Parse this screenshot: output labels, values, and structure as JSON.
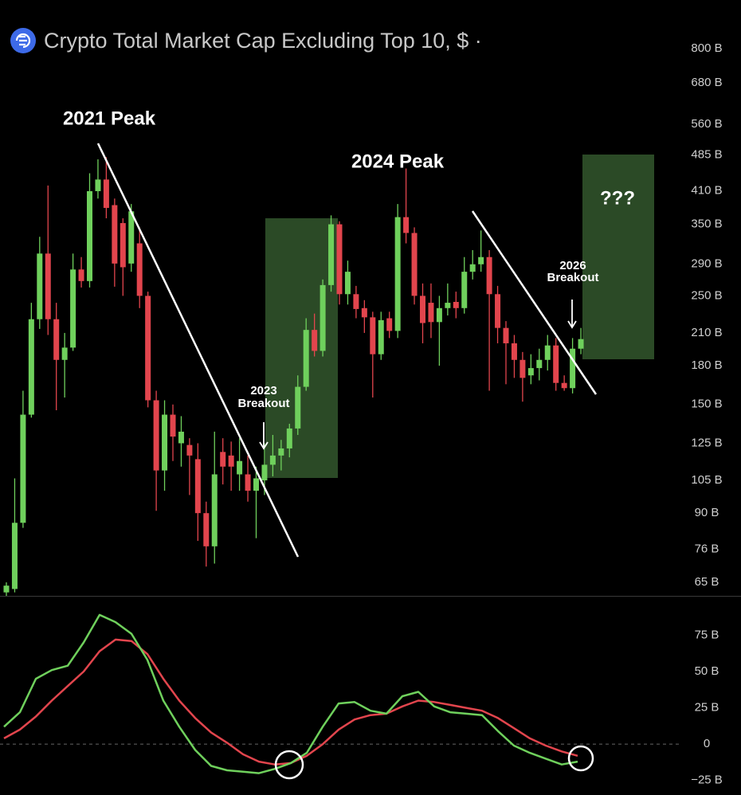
{
  "chart_data": [
    {
      "type": "candlestick",
      "title": "Crypto Total Market Cap Excluding Top 10, $ ·",
      "log": true,
      "ylim": [
        61,
        898
      ],
      "yticks": [
        {
          "value": 800,
          "label": "800 B"
        },
        {
          "value": 680,
          "label": "680 B"
        },
        {
          "value": 560,
          "label": "560 B"
        },
        {
          "value": 485,
          "label": "485 B"
        },
        {
          "value": 410,
          "label": "410 B"
        },
        {
          "value": 350,
          "label": "350 B"
        },
        {
          "value": 290,
          "label": "290 B"
        },
        {
          "value": 250,
          "label": "250 B"
        },
        {
          "value": 210,
          "label": "210 B"
        },
        {
          "value": 180,
          "label": "180 B"
        },
        {
          "value": 150,
          "label": "150 B"
        },
        {
          "value": 125,
          "label": "125 B"
        },
        {
          "value": 105,
          "label": "105 B"
        },
        {
          "value": 90,
          "label": "90 B"
        },
        {
          "value": 76,
          "label": "76 B"
        },
        {
          "value": 65,
          "label": "65 B"
        }
      ],
      "up_color": "#6fd05c",
      "down_color": "#e2454d",
      "open": [
        62,
        63,
        86,
        143,
        224,
        305,
        224,
        185,
        196,
        283,
        268,
        409,
        432,
        383,
        352,
        291,
        320,
        250,
        153,
        110,
        143,
        125,
        124,
        116,
        90,
        77,
        120,
        118,
        108,
        108,
        100,
        105,
        113,
        118,
        122,
        134,
        163,
        213,
        193,
        263,
        350,
        252,
        252,
        236,
        226,
        190,
        225,
        212,
        362,
        336,
        250,
        242,
        221,
        236,
        243,
        236,
        280,
        290,
        300,
        252,
        215,
        200,
        185,
        172,
        178,
        185,
        198,
        166,
        162,
        195
      ],
      "high": [
        65,
        106,
        160,
        242,
        330,
        420,
        242,
        210,
        305,
        300,
        445,
        475,
        480,
        395,
        360,
        385,
        345,
        255,
        160,
        153,
        150,
        142,
        128,
        125,
        95,
        132,
        128,
        126,
        128,
        118,
        112,
        125,
        130,
        127,
        137,
        172,
        225,
        230,
        270,
        365,
        355,
        295,
        262,
        245,
        232,
        232,
        232,
        385,
        455,
        345,
        265,
        265,
        250,
        265,
        255,
        300,
        310,
        340,
        310,
        262,
        222,
        208,
        192,
        190,
        195,
        208,
        205,
        172,
        205,
        215
      ],
      "low": [
        61,
        62,
        84,
        141,
        214,
        208,
        146,
        155,
        193,
        260,
        260,
        395,
        360,
        261,
        250,
        280,
        236,
        148,
        91,
        100,
        115,
        112,
        98,
        79,
        70,
        71,
        103,
        100,
        100,
        95,
        80,
        98,
        107,
        110,
        117,
        130,
        160,
        188,
        188,
        255,
        240,
        240,
        225,
        210,
        155,
        185,
        205,
        205,
        320,
        240,
        200,
        205,
        180,
        228,
        225,
        230,
        270,
        280,
        160,
        200,
        165,
        170,
        152,
        165,
        168,
        176,
        160,
        160,
        158,
        190
      ],
      "close": [
        64,
        86,
        143,
        224,
        305,
        224,
        185,
        196,
        283,
        268,
        409,
        432,
        378,
        291,
        286,
        372,
        250,
        153,
        110,
        143,
        129,
        132,
        118,
        90,
        77,
        108,
        112,
        112,
        115,
        100,
        106,
        113,
        118,
        122,
        134,
        163,
        213,
        193,
        263,
        350,
        252,
        280,
        235,
        226,
        190,
        223,
        212,
        362,
        336,
        250,
        220,
        221,
        236,
        242,
        236,
        280,
        290,
        300,
        252,
        215,
        200,
        185,
        170,
        178,
        185,
        198,
        166,
        162,
        195,
        204
      ],
      "annotations": [
        "2021 Peak",
        "2024 Peak",
        "2023",
        "Breakout",
        "2026",
        "Breakout",
        "???"
      ]
    },
    {
      "type": "line",
      "ylim": [
        -35,
        101
      ],
      "yticks": [
        {
          "value": 75,
          "label": "75 B"
        },
        {
          "value": 50,
          "label": "50 B"
        },
        {
          "value": 25,
          "label": "25 B"
        },
        0,
        {
          "value": -25,
          "label": "−25 B"
        }
      ],
      "series": [
        {
          "color": "#6fd05c",
          "values": [
            12,
            22,
            45,
            51,
            54,
            70,
            89,
            84,
            76,
            58,
            30,
            12,
            -4,
            -15,
            -18,
            -19,
            -20,
            -17,
            -13,
            -6,
            12,
            28,
            29,
            23,
            21,
            33,
            36,
            26,
            22,
            21,
            20,
            9,
            -1,
            -6,
            -10,
            -14,
            -12
          ]
        },
        {
          "color": "#e2454d",
          "values": [
            4,
            10,
            19,
            30,
            40,
            50,
            64,
            72,
            71,
            62,
            45,
            30,
            18,
            8,
            1,
            -7,
            -12,
            -14,
            -13,
            -8,
            0,
            10,
            17,
            20,
            21,
            26,
            30,
            29,
            27,
            25,
            23,
            18,
            11,
            4,
            -1,
            -5,
            -8
          ]
        }
      ]
    }
  ]
}
